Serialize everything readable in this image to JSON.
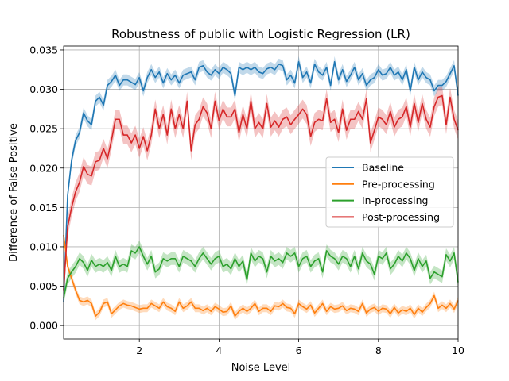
{
  "chart_data": {
    "type": "line",
    "title": "Robustness of public with Logistic Regression (LR)",
    "xlabel": "Noise Level",
    "ylabel": "Difference of False Positive",
    "xlim": [
      0.1,
      10
    ],
    "ylim": [
      -0.0017,
      0.0355
    ],
    "x_ticks": [
      2,
      4,
      6,
      8,
      10
    ],
    "x_tick_labels": [
      "2",
      "4",
      "6",
      "8",
      "10"
    ],
    "y_ticks": [
      0,
      0.005,
      0.01,
      0.015,
      0.02,
      0.025,
      0.03,
      0.035
    ],
    "y_tick_labels": [
      "0.000",
      "0.005",
      "0.010",
      "0.015",
      "0.020",
      "0.025",
      "0.030",
      "0.035"
    ],
    "grid": true,
    "legend_position": "center-right",
    "series": [
      {
        "name": "Baseline",
        "color": "#1f77b4",
        "x": [
          0.1,
          0.2,
          0.3,
          0.4,
          0.5,
          0.6,
          0.7,
          0.8,
          0.9,
          1.0,
          1.1,
          1.2,
          1.3,
          1.4,
          1.5,
          1.6,
          1.7,
          1.8,
          1.9,
          2.0,
          2.1,
          2.2,
          2.3,
          2.4,
          2.5,
          2.6,
          2.7,
          2.8,
          2.9,
          3.0,
          3.1,
          3.2,
          3.3,
          3.4,
          3.5,
          3.6,
          3.7,
          3.8,
          3.9,
          4.0,
          4.1,
          4.2,
          4.3,
          4.4,
          4.5,
          4.6,
          4.7,
          4.8,
          4.9,
          5.0,
          5.1,
          5.2,
          5.3,
          5.4,
          5.5,
          5.6,
          5.7,
          5.8,
          5.9,
          6.0,
          6.1,
          6.2,
          6.3,
          6.4,
          6.5,
          6.6,
          6.7,
          6.8,
          6.9,
          7.0,
          7.1,
          7.2,
          7.3,
          7.4,
          7.5,
          7.6,
          7.7,
          7.8,
          7.9,
          8.0,
          8.1,
          8.2,
          8.3,
          8.4,
          8.5,
          8.6,
          8.7,
          8.8,
          8.9,
          9.0,
          9.1,
          9.2,
          9.3,
          9.4,
          9.5,
          9.6,
          9.7,
          9.8,
          9.9,
          10.0
        ],
        "values": [
          0.003,
          0.0165,
          0.021,
          0.0235,
          0.0245,
          0.027,
          0.026,
          0.0255,
          0.0285,
          0.029,
          0.028,
          0.0305,
          0.031,
          0.0318,
          0.0305,
          0.0312,
          0.0312,
          0.0309,
          0.0306,
          0.0315,
          0.0298,
          0.0315,
          0.0325,
          0.0315,
          0.0322,
          0.0308,
          0.032,
          0.0312,
          0.0318,
          0.0308,
          0.0318,
          0.032,
          0.0322,
          0.0312,
          0.0328,
          0.033,
          0.0322,
          0.0318,
          0.0325,
          0.032,
          0.0328,
          0.0325,
          0.032,
          0.0292,
          0.0328,
          0.0325,
          0.0328,
          0.0325,
          0.0328,
          0.0322,
          0.032,
          0.0326,
          0.0328,
          0.0325,
          0.0332,
          0.033,
          0.0312,
          0.0318,
          0.0308,
          0.0335,
          0.0315,
          0.0322,
          0.0308,
          0.0332,
          0.0322,
          0.0318,
          0.0328,
          0.0305,
          0.0335,
          0.0312,
          0.0325,
          0.031,
          0.0318,
          0.0328,
          0.0312,
          0.032,
          0.0305,
          0.0312,
          0.0315,
          0.0325,
          0.0318,
          0.032,
          0.0328,
          0.0318,
          0.0322,
          0.0312,
          0.0325,
          0.0298,
          0.0328,
          0.0312,
          0.0322,
          0.0315,
          0.0312,
          0.0298,
          0.0305,
          0.0305,
          0.031,
          0.032,
          0.033,
          0.0292
        ],
        "band": 0.0007
      },
      {
        "name": "Pre-processing",
        "color": "#ff7f0e",
        "x": [
          0.1,
          0.2,
          0.3,
          0.4,
          0.5,
          0.6,
          0.7,
          0.8,
          0.9,
          1.0,
          1.1,
          1.2,
          1.3,
          1.4,
          1.5,
          1.6,
          1.7,
          1.8,
          1.9,
          2.0,
          2.1,
          2.2,
          2.3,
          2.4,
          2.5,
          2.6,
          2.7,
          2.8,
          2.9,
          3.0,
          3.1,
          3.2,
          3.3,
          3.4,
          3.5,
          3.6,
          3.7,
          3.8,
          3.9,
          4.0,
          4.1,
          4.2,
          4.3,
          4.4,
          4.5,
          4.6,
          4.7,
          4.8,
          4.9,
          5.0,
          5.1,
          5.2,
          5.3,
          5.4,
          5.5,
          5.6,
          5.7,
          5.8,
          5.9,
          6.0,
          6.1,
          6.2,
          6.3,
          6.4,
          6.5,
          6.6,
          6.7,
          6.8,
          6.9,
          7.0,
          7.1,
          7.2,
          7.3,
          7.4,
          7.5,
          7.6,
          7.7,
          7.8,
          7.9,
          8.0,
          8.1,
          8.2,
          8.3,
          8.4,
          8.5,
          8.6,
          8.7,
          8.8,
          8.9,
          9.0,
          9.1,
          9.2,
          9.3,
          9.4,
          9.5,
          9.6,
          9.7,
          9.8,
          9.9,
          10.0
        ],
        "values": [
          0.0115,
          0.0075,
          0.006,
          0.0045,
          0.0032,
          0.003,
          0.0032,
          0.0028,
          0.0012,
          0.0017,
          0.0028,
          0.003,
          0.0015,
          0.002,
          0.0025,
          0.0028,
          0.0026,
          0.0025,
          0.0023,
          0.0021,
          0.0022,
          0.0022,
          0.0028,
          0.0025,
          0.0022,
          0.003,
          0.0024,
          0.0022,
          0.0018,
          0.003,
          0.0022,
          0.0025,
          0.003,
          0.0022,
          0.0022,
          0.0019,
          0.0022,
          0.0018,
          0.0024,
          0.0021,
          0.0017,
          0.0018,
          0.0025,
          0.0012,
          0.0018,
          0.0022,
          0.0018,
          0.0022,
          0.0028,
          0.0018,
          0.0022,
          0.0022,
          0.0018,
          0.0025,
          0.0024,
          0.0028,
          0.0023,
          0.0022,
          0.0015,
          0.0028,
          0.0024,
          0.0021,
          0.0026,
          0.0016,
          0.0022,
          0.0028,
          0.0018,
          0.0024,
          0.0021,
          0.0022,
          0.0025,
          0.0019,
          0.0022,
          0.0021,
          0.0018,
          0.0028,
          0.0016,
          0.0021,
          0.0023,
          0.0018,
          0.0022,
          0.0021,
          0.0015,
          0.0023,
          0.0016,
          0.002,
          0.0018,
          0.0022,
          0.0014,
          0.0022,
          0.0017,
          0.0023,
          0.0028,
          0.0038,
          0.0022,
          0.0026,
          0.0022,
          0.0028,
          0.0021,
          0.0032
        ],
        "band": 0.0005
      },
      {
        "name": "In-processing",
        "color": "#2ca02c",
        "x": [
          0.1,
          0.2,
          0.3,
          0.4,
          0.5,
          0.6,
          0.7,
          0.8,
          0.9,
          1.0,
          1.1,
          1.2,
          1.3,
          1.4,
          1.5,
          1.6,
          1.7,
          1.8,
          1.9,
          2.0,
          2.1,
          2.2,
          2.3,
          2.4,
          2.5,
          2.6,
          2.7,
          2.8,
          2.9,
          3.0,
          3.1,
          3.2,
          3.3,
          3.4,
          3.5,
          3.6,
          3.7,
          3.8,
          3.9,
          4.0,
          4.1,
          4.2,
          4.3,
          4.4,
          4.5,
          4.6,
          4.7,
          4.8,
          4.9,
          5.0,
          5.1,
          5.2,
          5.3,
          5.4,
          5.5,
          5.6,
          5.7,
          5.8,
          5.9,
          6.0,
          6.1,
          6.2,
          6.3,
          6.4,
          6.5,
          6.6,
          6.7,
          6.8,
          6.9,
          7.0,
          7.1,
          7.2,
          7.3,
          7.4,
          7.5,
          7.6,
          7.7,
          7.8,
          7.9,
          8.0,
          8.1,
          8.2,
          8.3,
          8.4,
          8.5,
          8.6,
          8.7,
          8.8,
          8.9,
          9.0,
          9.1,
          9.2,
          9.3,
          9.4,
          9.5,
          9.6,
          9.7,
          9.8,
          9.9,
          10.0
        ],
        "values": [
          0.0035,
          0.006,
          0.0068,
          0.0075,
          0.0085,
          0.008,
          0.007,
          0.0083,
          0.0075,
          0.0078,
          0.0075,
          0.008,
          0.007,
          0.0088,
          0.0075,
          0.0078,
          0.0075,
          0.0095,
          0.0092,
          0.01,
          0.0088,
          0.0078,
          0.0088,
          0.0068,
          0.0072,
          0.0085,
          0.0082,
          0.0085,
          0.0085,
          0.0075,
          0.0088,
          0.0085,
          0.0082,
          0.0075,
          0.0085,
          0.0092,
          0.0085,
          0.0078,
          0.0085,
          0.0088,
          0.0075,
          0.0078,
          0.0072,
          0.0085,
          0.0075,
          0.0082,
          0.0058,
          0.0092,
          0.0082,
          0.0088,
          0.0085,
          0.0068,
          0.0088,
          0.0082,
          0.0085,
          0.008,
          0.0092,
          0.0088,
          0.0092,
          0.0075,
          0.0085,
          0.0088,
          0.0075,
          0.0082,
          0.0085,
          0.0068,
          0.0095,
          0.0088,
          0.0085,
          0.0078,
          0.0088,
          0.0085,
          0.0075,
          0.0088,
          0.0072,
          0.0092,
          0.0082,
          0.0078,
          0.0065,
          0.0088,
          0.0085,
          0.0092,
          0.0072,
          0.0078,
          0.0088,
          0.0082,
          0.0092,
          0.0085,
          0.007,
          0.0085,
          0.0075,
          0.0082,
          0.006,
          0.0068,
          0.0065,
          0.0062,
          0.009,
          0.0082,
          0.0092,
          0.0055
        ],
        "band": 0.0008
      },
      {
        "name": "Post-processing",
        "color": "#d62728",
        "x": [
          0.1,
          0.2,
          0.3,
          0.4,
          0.5,
          0.6,
          0.7,
          0.8,
          0.9,
          1.0,
          1.1,
          1.2,
          1.3,
          1.4,
          1.5,
          1.6,
          1.7,
          1.8,
          1.9,
          2.0,
          2.1,
          2.2,
          2.3,
          2.4,
          2.5,
          2.6,
          2.7,
          2.8,
          2.9,
          3.0,
          3.1,
          3.2,
          3.3,
          3.4,
          3.5,
          3.6,
          3.7,
          3.8,
          3.9,
          4.0,
          4.1,
          4.2,
          4.3,
          4.4,
          4.5,
          4.6,
          4.7,
          4.8,
          4.9,
          5.0,
          5.1,
          5.2,
          5.3,
          5.4,
          5.5,
          5.6,
          5.7,
          5.8,
          5.9,
          6.0,
          6.1,
          6.2,
          6.3,
          6.4,
          6.5,
          6.6,
          6.7,
          6.8,
          6.9,
          7.0,
          7.1,
          7.2,
          7.3,
          7.4,
          7.5,
          7.6,
          7.7,
          7.8,
          7.9,
          8.0,
          8.1,
          8.2,
          8.3,
          8.4,
          8.5,
          8.6,
          8.7,
          8.8,
          8.9,
          9.0,
          9.1,
          9.2,
          9.3,
          9.4,
          9.5,
          9.6,
          9.7,
          9.8,
          9.9,
          10.0
        ],
        "values": [
          0.0045,
          0.0125,
          0.015,
          0.017,
          0.0182,
          0.0202,
          0.0192,
          0.019,
          0.0208,
          0.021,
          0.0225,
          0.0212,
          0.0235,
          0.0262,
          0.0262,
          0.0242,
          0.0242,
          0.0232,
          0.0242,
          0.0225,
          0.024,
          0.0222,
          0.0242,
          0.0275,
          0.025,
          0.0268,
          0.0242,
          0.0275,
          0.025,
          0.0268,
          0.025,
          0.0285,
          0.0222,
          0.0255,
          0.0262,
          0.0278,
          0.027,
          0.025,
          0.0285,
          0.026,
          0.0275,
          0.0265,
          0.0265,
          0.0275,
          0.0245,
          0.0268,
          0.025,
          0.0285,
          0.025,
          0.0258,
          0.025,
          0.0282,
          0.0252,
          0.026,
          0.0252,
          0.0262,
          0.0265,
          0.0255,
          0.0262,
          0.0268,
          0.0275,
          0.0268,
          0.024,
          0.0258,
          0.0262,
          0.026,
          0.0288,
          0.0258,
          0.0262,
          0.0245,
          0.0275,
          0.0248,
          0.0262,
          0.0262,
          0.0272,
          0.0262,
          0.0288,
          0.0232,
          0.0248,
          0.0265,
          0.0262,
          0.0255,
          0.0272,
          0.0252,
          0.0262,
          0.0265,
          0.0278,
          0.0252,
          0.0282,
          0.0258,
          0.0282,
          0.0262,
          0.0252,
          0.0278,
          0.029,
          0.0292,
          0.0255,
          0.029,
          0.0262,
          0.0248
        ],
        "band": 0.0012
      }
    ]
  }
}
